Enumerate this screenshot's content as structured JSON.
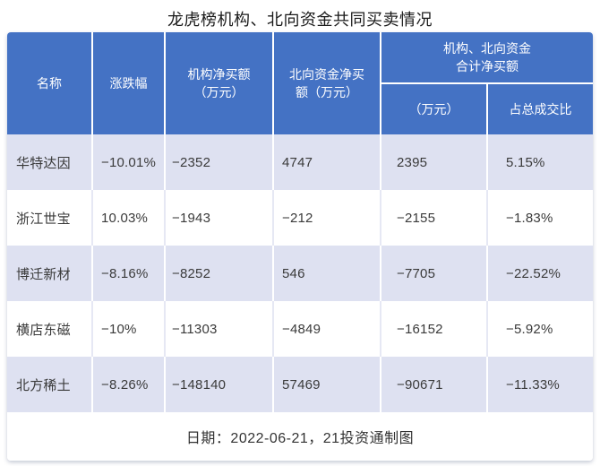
{
  "title": "龙虎榜机构、北向资金共同买卖情况",
  "colors": {
    "header_bg": "#4472C4",
    "header_text": "#FFFFFF",
    "row_alt_bg": "#DEE1F1",
    "row_bg": "#FFFFFF",
    "body_text": "#3A3A3A",
    "title_text": "#1A1A1A"
  },
  "table": {
    "columns": [
      {
        "label": "名称"
      },
      {
        "label": "涨跌幅"
      },
      {
        "label": "机构净买额\n（万元）"
      },
      {
        "label": "北向资金净买\n额（万元）"
      }
    ],
    "group_header": {
      "label": "机构、北向资金\n合计净买额",
      "sub_columns": [
        "（万元）",
        "占总成交比"
      ]
    },
    "rows": [
      {
        "name": "华特达因",
        "change": "−10.01%",
        "inst_net": "−2352",
        "north_net": "4747",
        "total_net": "2395",
        "turnover_ratio": "5.15%"
      },
      {
        "name": "浙江世宝",
        "change": "10.03%",
        "inst_net": "−1943",
        "north_net": "−212",
        "total_net": "−2155",
        "turnover_ratio": "−1.83%"
      },
      {
        "name": "博迁新材",
        "change": "−8.16%",
        "inst_net": "−8252",
        "north_net": "546",
        "total_net": "−7705",
        "turnover_ratio": "−22.52%"
      },
      {
        "name": "横店东磁",
        "change": "−10%",
        "inst_net": "−11303",
        "north_net": "−4849",
        "total_net": "−16152",
        "turnover_ratio": "−5.92%"
      },
      {
        "name": "北方稀土",
        "change": "−8.26%",
        "inst_net": "−148140",
        "north_net": "57469",
        "total_net": "−90671",
        "turnover_ratio": "−11.33%"
      }
    ],
    "footer": "日期：2022-06-21，21投资通制图"
  },
  "chart_data": {
    "type": "table",
    "title": "龙虎榜机构、北向资金共同买卖情况",
    "columns": [
      "名称",
      "涨跌幅",
      "机构净买额（万元）",
      "北向资金净买额（万元）",
      "机构、北向资金合计净买额（万元）",
      "机构、北向资金合计净买额占总成交比"
    ],
    "rows": [
      {
        "name": "华特达因",
        "change_pct": -10.01,
        "inst_net_wan": -2352,
        "north_net_wan": 4747,
        "total_net_wan": 2395,
        "pct_of_turnover": 5.15
      },
      {
        "name": "浙江世宝",
        "change_pct": 10.03,
        "inst_net_wan": -1943,
        "north_net_wan": -212,
        "total_net_wan": -2155,
        "pct_of_turnover": -1.83
      },
      {
        "name": "博迁新材",
        "change_pct": -8.16,
        "inst_net_wan": -8252,
        "north_net_wan": 546,
        "total_net_wan": -7705,
        "pct_of_turnover": -22.52
      },
      {
        "name": "横店东磁",
        "change_pct": -10,
        "inst_net_wan": -11303,
        "north_net_wan": -4849,
        "total_net_wan": -16152,
        "pct_of_turnover": -5.92
      },
      {
        "name": "北方稀土",
        "change_pct": -8.26,
        "inst_net_wan": -148140,
        "north_net_wan": 57469,
        "total_net_wan": -90671,
        "pct_of_turnover": -11.33
      }
    ],
    "note": "日期：2022-06-21，21投资通制图"
  }
}
